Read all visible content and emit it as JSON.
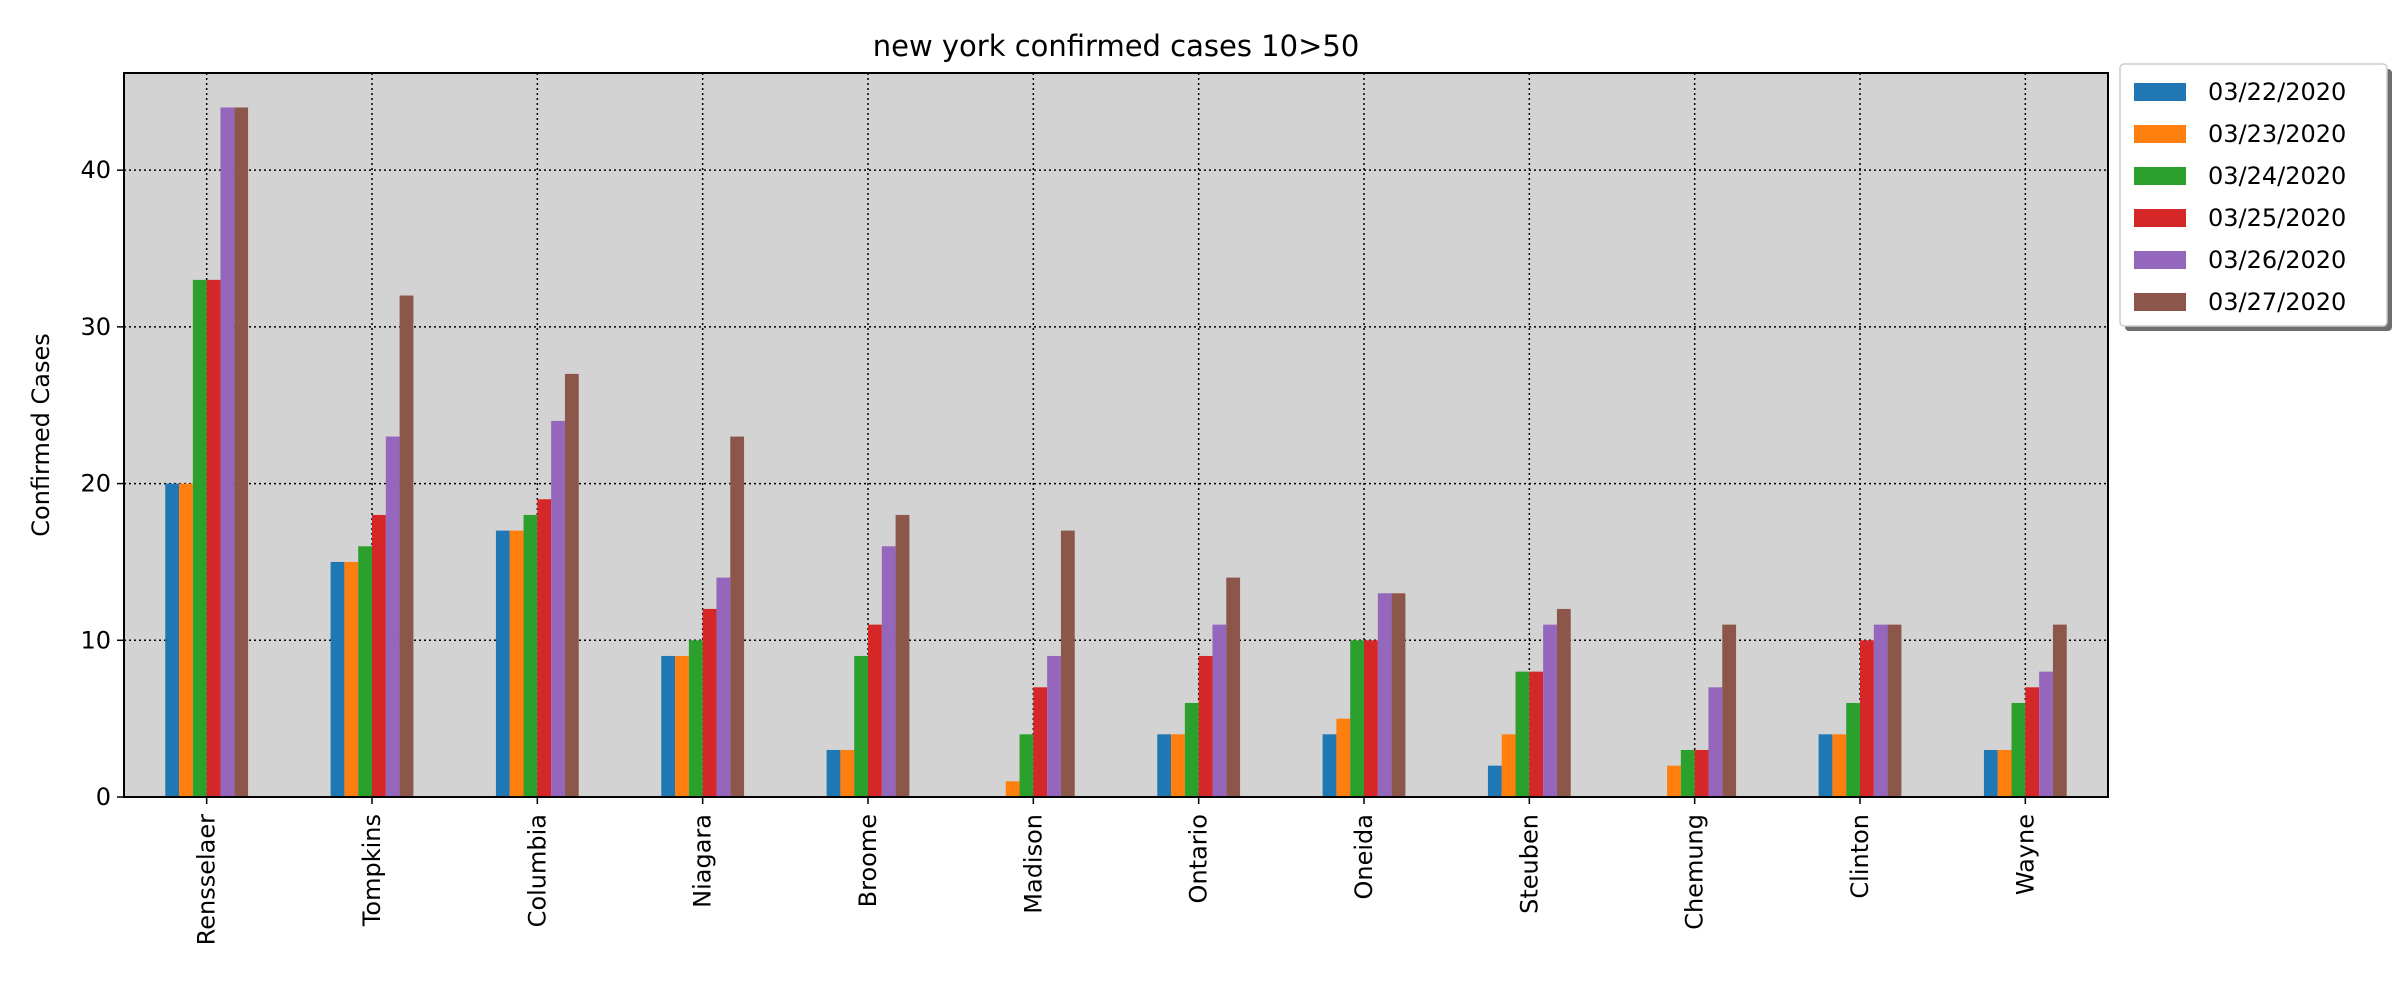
{
  "chart_data": {
    "type": "bar",
    "title": "new york confirmed cases 10>50",
    "xlabel": "",
    "ylabel": "Confirmed Cases",
    "ylim": [
      0,
      46.2
    ],
    "yticks": [
      0,
      10,
      20,
      30,
      40
    ],
    "grid": true,
    "legend_position": "outside-top-right",
    "background": "#d3d3d3",
    "categories": [
      "Rensselaer",
      "Tompkins",
      "Columbia",
      "Niagara",
      "Broome",
      "Madison",
      "Ontario",
      "Oneida",
      "Steuben",
      "Chemung",
      "Clinton",
      "Wayne"
    ],
    "series": [
      {
        "name": "03/22/2020",
        "color": "#1f77b4",
        "values": [
          20,
          15,
          17,
          9,
          3,
          0,
          4,
          4,
          2,
          0,
          4,
          3
        ]
      },
      {
        "name": "03/23/2020",
        "color": "#ff7f0e",
        "values": [
          20,
          15,
          17,
          9,
          3,
          1,
          4,
          5,
          4,
          2,
          4,
          3
        ]
      },
      {
        "name": "03/24/2020",
        "color": "#2ca02c",
        "values": [
          33,
          16,
          18,
          10,
          9,
          4,
          6,
          10,
          8,
          3,
          6,
          6
        ]
      },
      {
        "name": "03/25/2020",
        "color": "#d62728",
        "values": [
          33,
          18,
          19,
          12,
          11,
          7,
          9,
          10,
          8,
          3,
          10,
          7
        ]
      },
      {
        "name": "03/26/2020",
        "color": "#9467bd",
        "values": [
          44,
          23,
          24,
          14,
          16,
          9,
          11,
          13,
          11,
          7,
          11,
          8
        ]
      },
      {
        "name": "03/27/2020",
        "color": "#8c564b",
        "values": [
          44,
          32,
          27,
          23,
          18,
          17,
          14,
          13,
          12,
          11,
          11,
          11
        ]
      }
    ]
  }
}
